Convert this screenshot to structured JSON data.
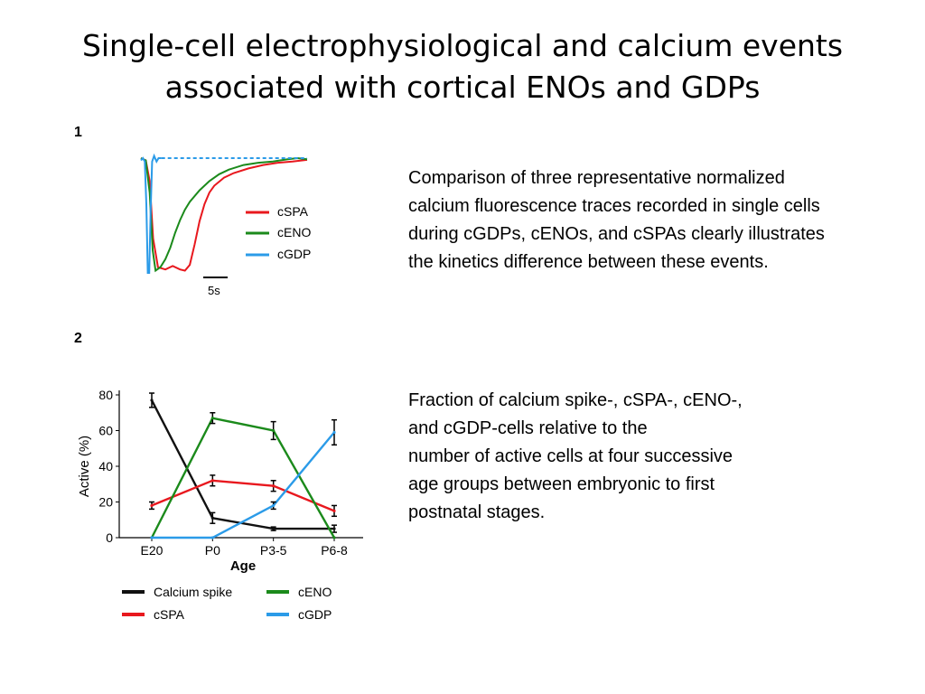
{
  "slide": {
    "title_line1": "Single-cell electrophysiological and calcium events",
    "title_line2": "associated with cortical ENOs and GDPs",
    "panel1_number": "1",
    "panel2_number": "2",
    "panel1_description": "Comparison of three representative normalized calcium fluorescence traces recorded in single cells during cGDPs, cENOs, and cSPAs clearly illustrates the kinetics difference between these events.",
    "panel2_desc_line1": "Fraction of calcium spike-, cSPA-, cENO-,",
    "panel2_desc_line2": "and cGDP-cells relative to the",
    "panel2_desc_line3": "number of active cells at four successive",
    "panel2_desc_line4": "age groups between embryonic to first",
    "panel2_desc_line5": "postnatal stages."
  },
  "colors": {
    "cspa": "#e8181e",
    "ceno": "#1b8a1b",
    "cgdp": "#2b9be8",
    "calcium_spike": "#111111"
  },
  "chart_data": [
    {
      "type": "line",
      "scale_bar_label": "5s",
      "legend_position": "right",
      "x_range": [
        0,
        34
      ],
      "y_range": [
        0,
        1
      ],
      "series": [
        {
          "name": "cSPA",
          "color": "#e8181e",
          "points": [
            [
              0,
              1.0
            ],
            [
              1.0,
              0.98
            ],
            [
              1.8,
              0.8
            ],
            [
              2.5,
              0.3
            ],
            [
              3.5,
              0.05
            ],
            [
              5,
              0.03
            ],
            [
              6.5,
              0.06
            ],
            [
              8,
              0.03
            ],
            [
              9,
              0.02
            ],
            [
              10,
              0.07
            ],
            [
              11,
              0.25
            ],
            [
              12,
              0.45
            ],
            [
              13,
              0.6
            ],
            [
              14,
              0.7
            ],
            [
              15,
              0.76
            ],
            [
              17,
              0.83
            ],
            [
              19,
              0.87
            ],
            [
              22,
              0.91
            ],
            [
              25,
              0.94
            ],
            [
              28,
              0.96
            ],
            [
              31,
              0.97
            ],
            [
              34,
              0.985
            ]
          ]
        },
        {
          "name": "cENO",
          "color": "#1b8a1b",
          "points": [
            [
              0,
              1.0
            ],
            [
              1.0,
              0.98
            ],
            [
              1.8,
              0.7
            ],
            [
              2.4,
              0.2
            ],
            [
              3.0,
              0.02
            ],
            [
              4,
              0.05
            ],
            [
              5,
              0.12
            ],
            [
              6,
              0.22
            ],
            [
              7,
              0.35
            ],
            [
              8,
              0.46
            ],
            [
              9,
              0.55
            ],
            [
              10,
              0.62
            ],
            [
              12,
              0.72
            ],
            [
              14,
              0.8
            ],
            [
              16,
              0.86
            ],
            [
              18,
              0.9
            ],
            [
              21,
              0.94
            ],
            [
              24,
              0.96
            ],
            [
              27,
              0.97
            ],
            [
              30,
              0.99
            ],
            [
              32,
              1.0
            ],
            [
              34,
              0.99
            ]
          ]
        },
        {
          "name": "cGDP",
          "color": "#2b9be8",
          "points": [
            [
              0,
              0.98
            ],
            [
              0.4,
              1.0
            ],
            [
              0.8,
              0.97
            ],
            [
              1.1,
              0.6
            ],
            [
              1.4,
              0.0
            ],
            [
              1.7,
              0.0
            ],
            [
              2.0,
              0.55
            ],
            [
              2.3,
              0.97
            ],
            [
              2.7,
              1.02
            ],
            [
              3.2,
              0.97
            ],
            [
              3.6,
              1.0
            ],
            [
              4.2,
              1.0
            ]
          ]
        },
        {
          "name": "cGDP baseline",
          "color": "#2b9be8",
          "dashed": true,
          "points": [
            [
              4.2,
              1.0
            ],
            [
              34,
              1.0
            ]
          ]
        }
      ]
    },
    {
      "type": "line",
      "xlabel": "Age",
      "ylabel": "Active (%)",
      "categories": [
        "E20",
        "P0",
        "P3-5",
        "P6-8"
      ],
      "ylim": [
        0,
        80
      ],
      "yticks": [
        0,
        20,
        40,
        60,
        80
      ],
      "legend_position": "bottom",
      "series": [
        {
          "name": "Calcium spike",
          "color": "#111111",
          "values": [
            77,
            11,
            5,
            5
          ],
          "errors": [
            4,
            3,
            1,
            2
          ]
        },
        {
          "name": "cSPA",
          "color": "#e8181e",
          "values": [
            18,
            32,
            29,
            15
          ],
          "errors": [
            2,
            3,
            3,
            3
          ]
        },
        {
          "name": "cENO",
          "color": "#1b8a1b",
          "values": [
            0,
            67,
            60,
            0
          ],
          "errors": [
            0,
            3,
            5,
            0
          ]
        },
        {
          "name": "cGDP",
          "color": "#2b9be8",
          "values": [
            0,
            0,
            18,
            59
          ],
          "errors": [
            0,
            0,
            2,
            7
          ]
        }
      ]
    }
  ]
}
